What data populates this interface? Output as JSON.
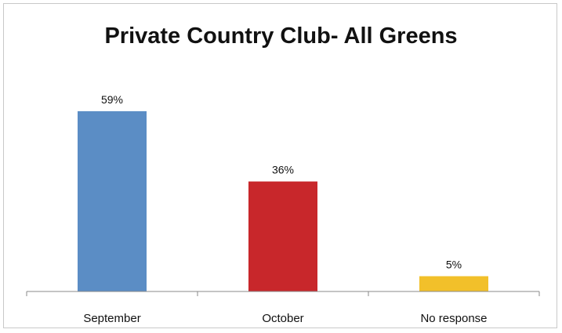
{
  "chart_data": {
    "type": "bar",
    "title": "Private Country Club- All Greens",
    "categories": [
      "September",
      "October",
      "No response"
    ],
    "values": [
      59,
      36,
      5
    ],
    "data_labels": [
      "59%",
      "36%",
      "5%"
    ],
    "colors": [
      "#5b8dc5",
      "#c8272b",
      "#f2c02a"
    ],
    "xlabel": "",
    "ylabel": "",
    "ylim": [
      0,
      70
    ],
    "grid": false,
    "legend": "none"
  }
}
